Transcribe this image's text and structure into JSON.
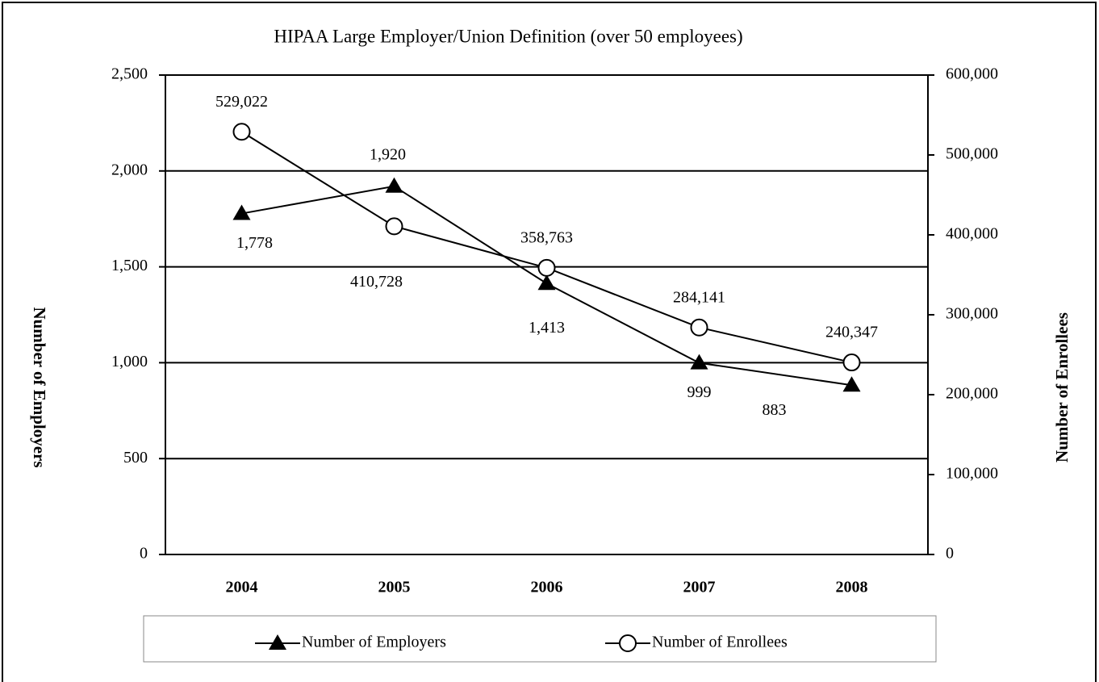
{
  "chart_data": {
    "type": "line",
    "title": "HIPAA Large Employer/Union Definition (over 50 employees)",
    "categories": [
      "2004",
      "2005",
      "2006",
      "2007",
      "2008"
    ],
    "ylabel": "Number of Employers",
    "y2label": "Number of Enrollees",
    "ylim": [
      0,
      2500
    ],
    "yticks": [
      0,
      500,
      {
        "value": 1000,
        "label": "1,000"
      },
      {
        "value": 1500,
        "label": "1,500"
      },
      {
        "value": 2000,
        "label": "2,000"
      },
      {
        "value": 2500,
        "label": "2,500"
      }
    ],
    "y2lim": [
      0,
      600000
    ],
    "y2ticks": [
      0,
      {
        "value": 100000,
        "label": "100,000"
      },
      {
        "value": 200000,
        "label": "200,000"
      },
      {
        "value": 300000,
        "label": "300,000"
      },
      {
        "value": 400000,
        "label": "400,000"
      },
      {
        "value": 500000,
        "label": "500,000"
      },
      {
        "value": 600000,
        "label": "600,000"
      }
    ],
    "grid": true,
    "legend": "bottom",
    "series": [
      {
        "name": "Number of Employers",
        "color": "#000000",
        "marker": "triangle",
        "values": [
          1778,
          1920,
          1413,
          999,
          883
        ],
        "value_labels": [
          "1,778",
          "1,920",
          "1,413",
          "999",
          "883"
        ]
      },
      {
        "name": "Number of Enrollees",
        "color": "#000000",
        "marker": "circle",
        "axis": "y2",
        "values": [
          529022,
          410728,
          358763,
          284141,
          240347
        ],
        "value_labels": [
          "529,022",
          "410,728",
          "358,763",
          "284,141",
          "240,347"
        ]
      }
    ]
  }
}
